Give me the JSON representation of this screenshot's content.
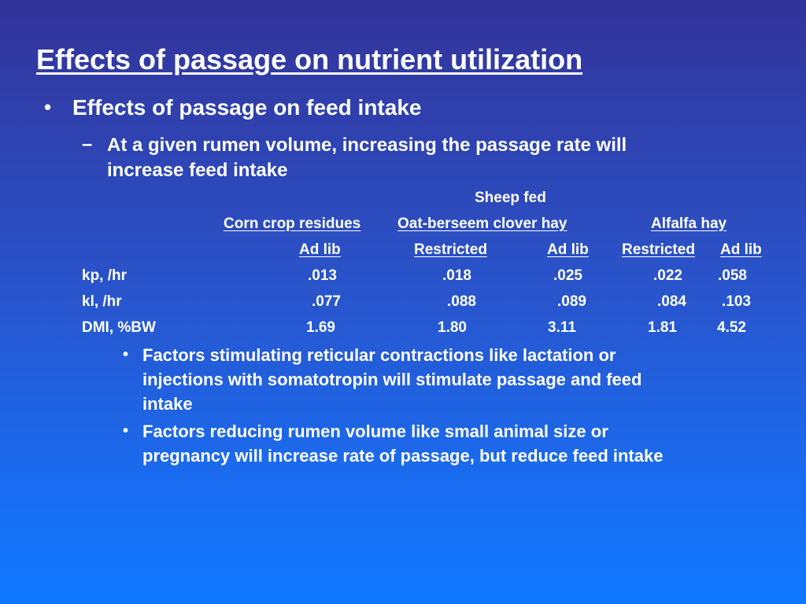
{
  "title": "Effects of passage on nutrient utilization",
  "bullet": "Effects of passage on feed intake",
  "sub_bullet_lines": [
    "At a given rumen volume, increasing the passage rate will",
    "increase feed intake"
  ],
  "table": {
    "header": "Sheep fed",
    "groups": [
      "Corn crop residues",
      "Oat-berseem clover hay",
      "Alfalfa hay"
    ],
    "feeding": [
      "Ad lib",
      "Restricted",
      "Ad lib",
      "Restricted",
      "Ad lib"
    ],
    "rows": [
      {
        "label": "kp, /hr",
        "values": [
          ".013",
          ".018",
          ".025",
          ".022",
          ".058"
        ]
      },
      {
        "label": "kl, /hr",
        "values": [
          ".077",
          ".088",
          ".089",
          ".084",
          ".103"
        ]
      },
      {
        "label": "DMI, %BW",
        "values": [
          "1.69",
          "1.80",
          "3.11",
          "1.81",
          "4.52"
        ]
      }
    ]
  },
  "sub_sub_bullets": [
    [
      "Factors stimulating reticular contractions like lactation or",
      "injections with somatotropin will stimulate passage and feed",
      "intake"
    ],
    [
      "Factors reducing rumen volume like small animal size or",
      "pregnancy will increase rate of passage, but reduce feed intake"
    ]
  ]
}
